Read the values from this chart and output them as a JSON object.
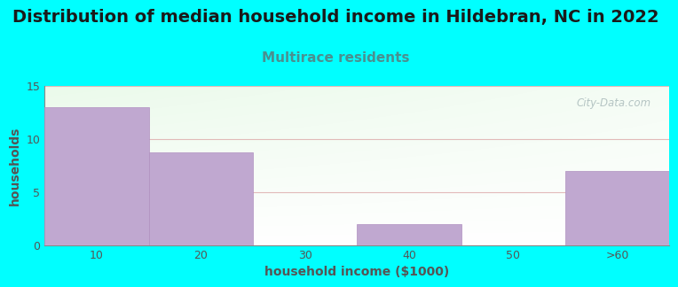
{
  "title": "Distribution of median household income in Hildebran, NC in 2022",
  "subtitle": "Multirace residents",
  "xlabel": "household income ($1000)",
  "ylabel": "households",
  "background_color": "#00FFFF",
  "bar_color": "#c0a8d0",
  "bar_edge_color": "#b090c0",
  "categories": [
    "10",
    "20",
    "30",
    "40",
    "50",
    ">60"
  ],
  "values": [
    13,
    8.7,
    0,
    2,
    0,
    7
  ],
  "ylim": [
    0,
    15
  ],
  "yticks": [
    0,
    5,
    10,
    15
  ],
  "title_fontsize": 14,
  "subtitle_fontsize": 11,
  "subtitle_color": "#4a9090",
  "axis_label_fontsize": 10,
  "tick_fontsize": 9,
  "tick_color": "#555555",
  "ylabel_color": "#555555",
  "xlabel_color": "#555555",
  "grid_color": "#ddaaaa",
  "watermark": "City-Data.com",
  "watermark_color": "#aabbbb",
  "title_color": "#1a1a1a"
}
